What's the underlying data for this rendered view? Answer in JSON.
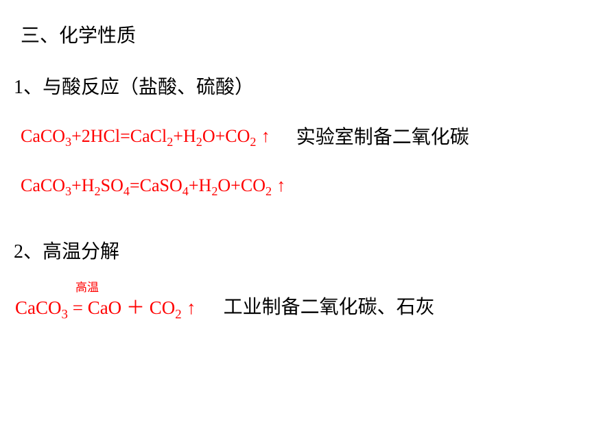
{
  "colors": {
    "text_black": "#000000",
    "text_red": "#ff0000",
    "background": "#ffffff"
  },
  "typography": {
    "chinese_font": "SimSun",
    "formula_font": "Times New Roman",
    "title_size": 28,
    "formula_size": 26,
    "small_label_size": 17
  },
  "section": {
    "title": "三、化学性质"
  },
  "item1": {
    "heading": "1、与酸反应（盐酸、硫酸）",
    "equation1": {
      "prefix": "CaCO",
      "sub1": "3",
      "mid1": "+2HCl=CaCl",
      "sub2": "2",
      "mid2": "+H",
      "sub3": "2",
      "mid3": "O+CO",
      "sub4": "2",
      "arrow": " ↑",
      "note": "实验室制备二氧化碳"
    },
    "equation2": {
      "prefix": "CaCO",
      "sub1": "3",
      "mid1": "+H",
      "sub2": "2",
      "mid2": "SO",
      "sub3": "4",
      "mid3": "=CaSO",
      "sub4": "4",
      "mid4": "+H",
      "sub5": "2",
      "mid5": "O+CO",
      "sub6": "2",
      "arrow": " ↑"
    }
  },
  "item2": {
    "heading": "2、高温分解",
    "condition": "高温",
    "equation": {
      "prefix": "CaCO",
      "sub1": "3",
      "eq": " = ",
      "mid1": "CaO",
      "plus": "   ＋  ",
      "mid2": "CO",
      "sub2": "2",
      "arrow": "  ↑",
      "note": "工业制备二氧化碳、石灰"
    }
  }
}
